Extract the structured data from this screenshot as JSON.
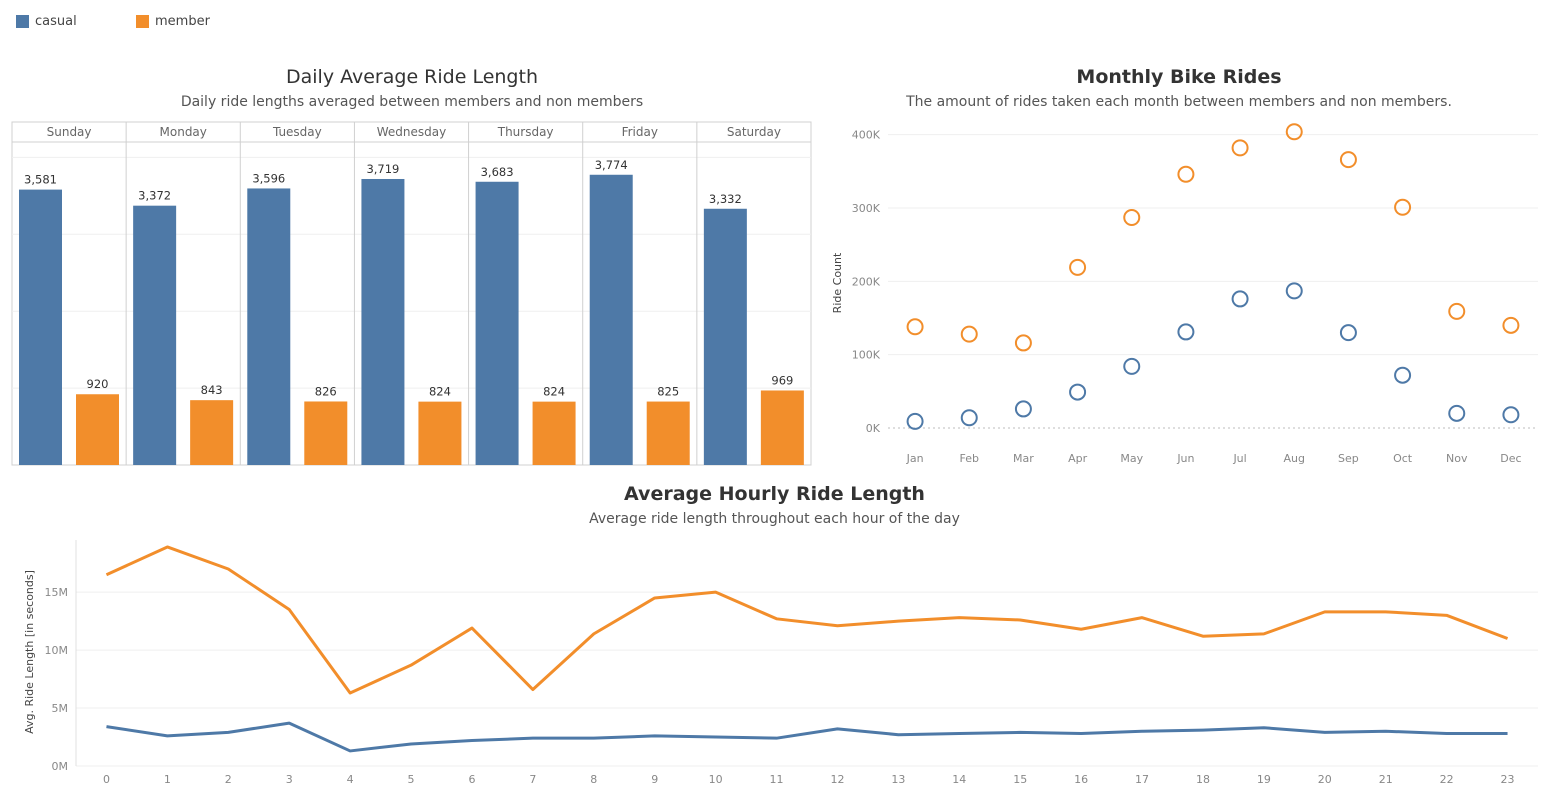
{
  "legend": [
    {
      "label": "casual",
      "color": "#4e79a7"
    },
    {
      "label": "member",
      "color": "#f28e2b"
    }
  ],
  "colors": {
    "casual": "#4e79a7",
    "member": "#f28e2b"
  },
  "chart_data": [
    {
      "type": "bar",
      "title": "Daily Average Ride Length",
      "subtitle": "Daily ride lengths averaged between members and non members",
      "categories": [
        "Sunday",
        "Monday",
        "Tuesday",
        "Wednesday",
        "Thursday",
        "Friday",
        "Saturday"
      ],
      "series": [
        {
          "name": "casual",
          "values": [
            3581,
            3372,
            3596,
            3719,
            3683,
            3774,
            3332
          ],
          "labels": [
            "3,581",
            "3,372",
            "3,596",
            "3,719",
            "3,683",
            "3,774",
            "3,332"
          ]
        },
        {
          "name": "member",
          "values": [
            920,
            843,
            826,
            824,
            824,
            825,
            969
          ],
          "labels": [
            "920",
            "843",
            "826",
            "824",
            "824",
            "825",
            "969"
          ]
        }
      ],
      "ylim": [
        0,
        4200
      ],
      "grid": true
    },
    {
      "type": "scatter",
      "title": "Monthly Bike Rides",
      "subtitle": "The amount of rides taken each month between members and non members.",
      "ylabel": "Ride Count",
      "categories": [
        "Jan",
        "Feb",
        "Mar",
        "Apr",
        "May",
        "Jun",
        "Jul",
        "Aug",
        "Sep",
        "Oct",
        "Nov",
        "Dec"
      ],
      "yticks": [
        {
          "value": 0,
          "label": "0K"
        },
        {
          "value": 100000,
          "label": "100K"
        },
        {
          "value": 200000,
          "label": "200K"
        },
        {
          "value": 300000,
          "label": "300K"
        },
        {
          "value": 400000,
          "label": "400K"
        }
      ],
      "ylim": [
        0,
        420000
      ],
      "series": [
        {
          "name": "casual",
          "values": [
            9000,
            14000,
            26000,
            49000,
            84000,
            131000,
            176000,
            187000,
            130000,
            72000,
            20000,
            18000
          ]
        },
        {
          "name": "member",
          "values": [
            138000,
            128000,
            116000,
            219000,
            287000,
            346000,
            382000,
            404000,
            366000,
            301000,
            159000,
            140000
          ]
        }
      ],
      "grid": true
    },
    {
      "type": "line",
      "title": "Average Hourly Ride Length",
      "subtitle": "Average ride length throughout each hour of the day",
      "ylabel": "Avg. Ride Length [in seconds]",
      "x": [
        "0",
        "1",
        "2",
        "3",
        "4",
        "5",
        "6",
        "7",
        "8",
        "9",
        "10",
        "11",
        "12",
        "13",
        "14",
        "15",
        "16",
        "17",
        "18",
        "19",
        "20",
        "21",
        "22",
        "23"
      ],
      "yticks": [
        {
          "value": 0,
          "label": "0M"
        },
        {
          "value": 5000000,
          "label": "5M"
        },
        {
          "value": 10000000,
          "label": "10M"
        },
        {
          "value": 15000000,
          "label": "15M"
        }
      ],
      "ylim": [
        0,
        19500000
      ],
      "series": [
        {
          "name": "casual",
          "values": [
            3400000,
            2600000,
            2900000,
            3700000,
            1300000,
            1900000,
            2200000,
            2400000,
            2400000,
            2600000,
            2500000,
            2400000,
            3200000,
            2700000,
            2800000,
            2900000,
            2800000,
            3000000,
            3100000,
            3300000,
            2900000,
            3000000,
            2800000,
            2800000
          ]
        },
        {
          "name": "member",
          "values": [
            16500000,
            18900000,
            17000000,
            13500000,
            6300000,
            8700000,
            11900000,
            6600000,
            11400000,
            14500000,
            15000000,
            12700000,
            12100000,
            12500000,
            12800000,
            12600000,
            11800000,
            12800000,
            11200000,
            11400000,
            13300000,
            13300000,
            13000000,
            11000000
          ]
        }
      ],
      "grid": true
    }
  ]
}
